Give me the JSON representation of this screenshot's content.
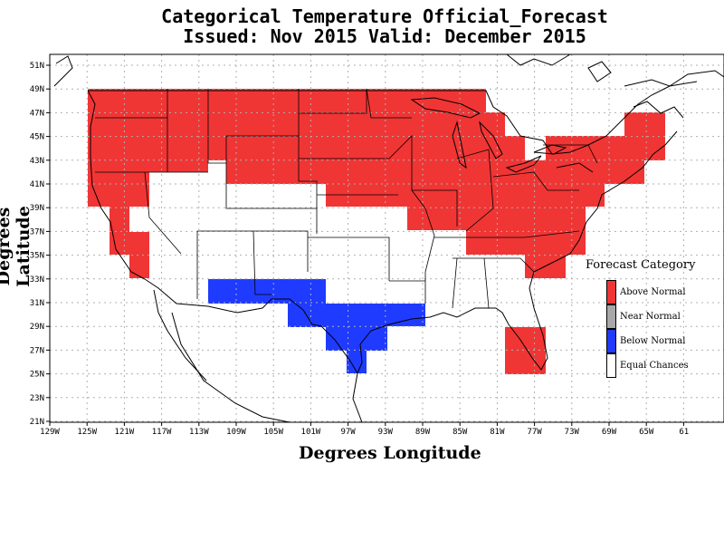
{
  "title_line1": "Categorical Temperature Official_Forecast",
  "title_line2": "Issued: Nov 2015 Valid: December 2015",
  "y_axis_label": "Degrees Latitude",
  "x_axis_label": "Degrees Longitude",
  "lat_ticks": [
    "51N",
    "49N",
    "47N",
    "45N",
    "43N",
    "41N",
    "39N",
    "37N",
    "35N",
    "33N",
    "31N",
    "29N",
    "27N",
    "25N",
    "23N",
    "21N"
  ],
  "lon_ticks": [
    "129W",
    "125W",
    "121W",
    "117W",
    "113W",
    "109W",
    "105W",
    "101W",
    "97W",
    "93W",
    "89W",
    "85W",
    "81W",
    "77W",
    "73W",
    "69W",
    "65W",
    "61"
  ],
  "legend": {
    "title": "Forecast Category",
    "items": [
      {
        "label": "Above Normal",
        "color": "#f03535"
      },
      {
        "label": "Near Normal",
        "color": "#a8a8a8"
      },
      {
        "label": "Below Normal",
        "color": "#1f3bff"
      },
      {
        "label": "Equal Chances",
        "color": "#ffffff"
      }
    ]
  },
  "colors": {
    "above": "#f03535",
    "below": "#1f3bff",
    "grid": "#b0b0b0"
  }
}
